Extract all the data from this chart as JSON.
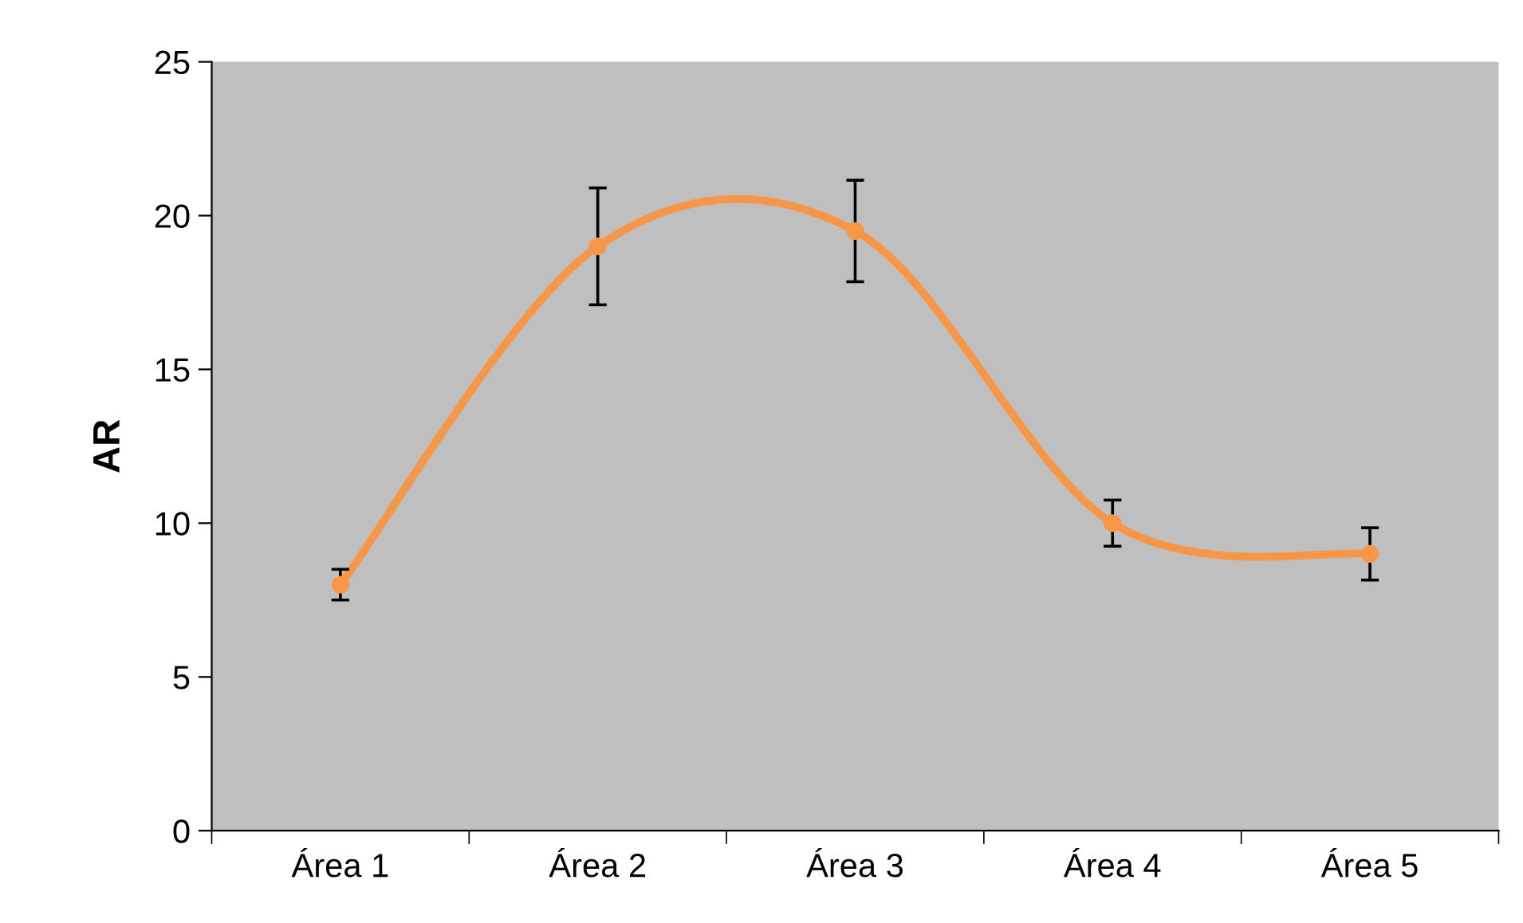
{
  "chart_data": {
    "type": "line",
    "ylabel": "AR",
    "categories": [
      "Área 1",
      "Área 2",
      "Área 3",
      "Área 4",
      "Área 5"
    ],
    "series": [
      {
        "color": "#f79646",
        "values": [
          8,
          19,
          19.5,
          10,
          9
        ],
        "errors": [
          0.5,
          1.9,
          1.65,
          0.75,
          0.85
        ]
      }
    ],
    "ylim": [
      0,
      25
    ],
    "yticks": [
      0,
      5,
      10,
      15,
      20,
      25
    ],
    "grid": false,
    "legend": false,
    "marker": "circle",
    "line_style": "solid"
  }
}
